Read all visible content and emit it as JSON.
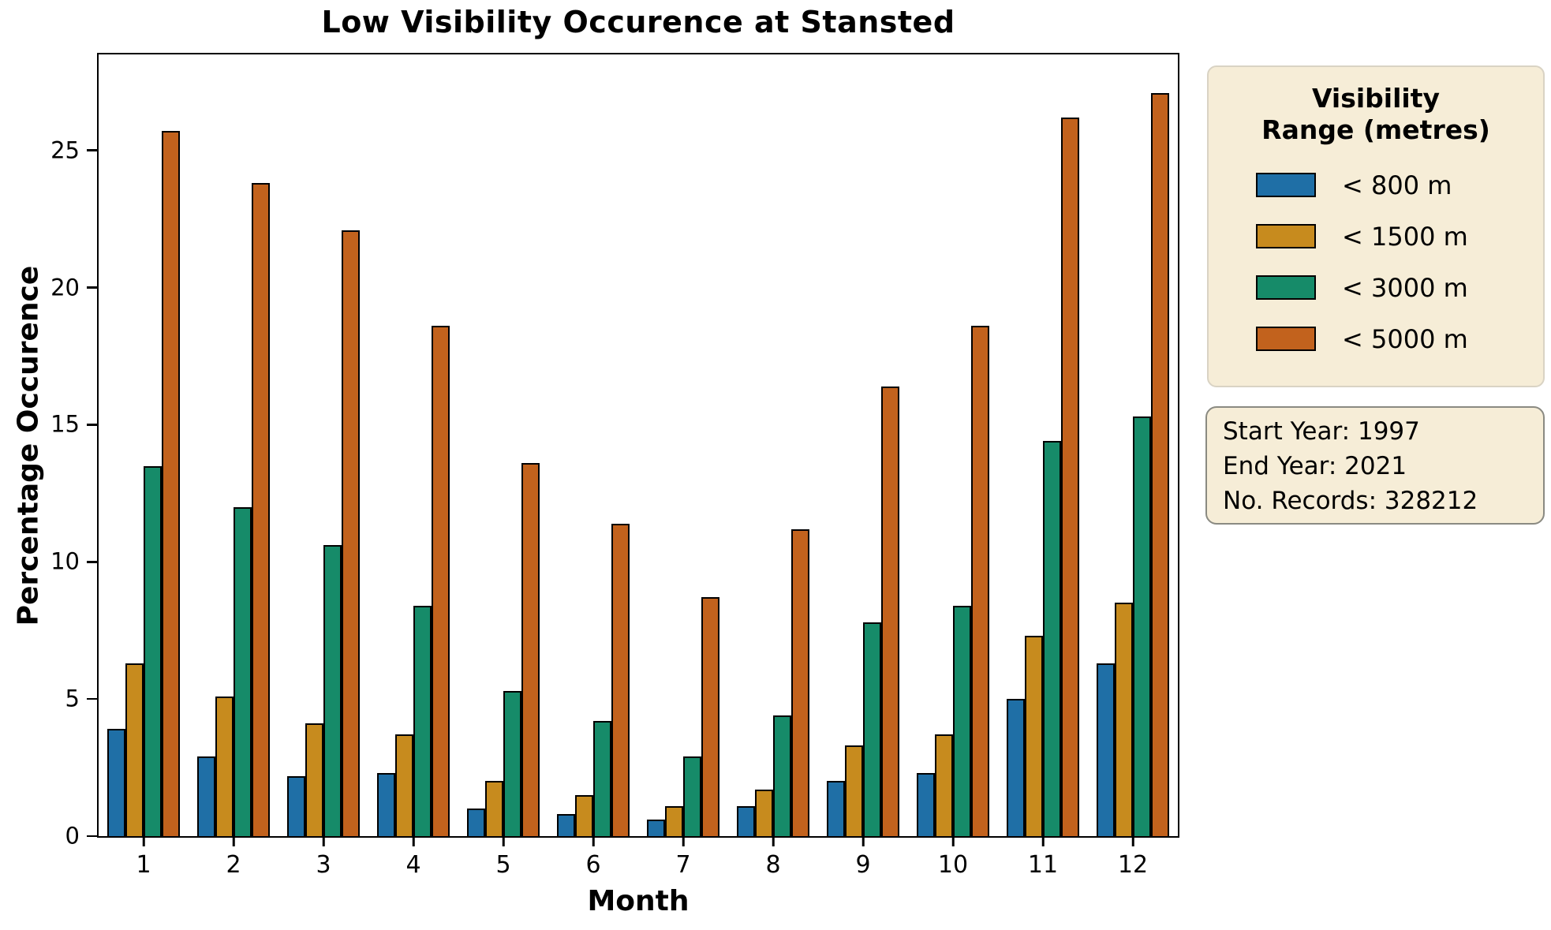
{
  "title": "Low Visibility Occurence at Stansted",
  "x_axis": {
    "label": "Month",
    "ticks": [
      "1",
      "2",
      "3",
      "4",
      "5",
      "6",
      "7",
      "8",
      "9",
      "10",
      "11",
      "12"
    ]
  },
  "y_axis": {
    "label": "Percentage Occurence",
    "ticks": [
      0,
      5,
      10,
      15,
      20,
      25
    ]
  },
  "legend": {
    "title_line1": "Visibility",
    "title_line2": "Range (metres)",
    "entries": [
      {
        "label": "< 800 m",
        "color": "#1F6FA6"
      },
      {
        "label": "< 1500 m",
        "color": "#C78B1E"
      },
      {
        "label": "< 3000 m",
        "color": "#168B69"
      },
      {
        "label": "< 5000 m",
        "color": "#C2621D"
      }
    ]
  },
  "info_box": {
    "lines": [
      "Start Year: 1997",
      "End Year: 2021",
      "No. Records: 328212"
    ]
  },
  "chart_data": {
    "type": "bar",
    "title": "Low Visibility Occurence at Stansted",
    "xlabel": "Month",
    "ylabel": "Percentage Occurence",
    "categories": [
      1,
      2,
      3,
      4,
      5,
      6,
      7,
      8,
      9,
      10,
      11,
      12
    ],
    "series": [
      {
        "name": "< 800 m",
        "color": "#1F6FA6",
        "values": [
          3.9,
          2.9,
          2.2,
          2.3,
          1.0,
          0.8,
          0.6,
          1.1,
          2.0,
          2.3,
          5.0,
          6.3
        ]
      },
      {
        "name": "< 1500 m",
        "color": "#C78B1E",
        "values": [
          6.3,
          5.1,
          4.1,
          3.7,
          2.0,
          1.5,
          1.1,
          1.7,
          3.3,
          3.7,
          7.3,
          8.5
        ]
      },
      {
        "name": "< 3000 m",
        "color": "#168B69",
        "values": [
          13.5,
          12.0,
          10.6,
          8.4,
          5.3,
          4.2,
          2.9,
          4.4,
          7.8,
          8.4,
          14.4,
          15.3
        ]
      },
      {
        "name": "< 5000 m",
        "color": "#C2621D",
        "values": [
          25.7,
          23.8,
          22.1,
          18.6,
          13.6,
          11.4,
          8.7,
          11.2,
          16.4,
          18.6,
          26.2,
          27.1
        ]
      }
    ],
    "ylim": [
      0,
      28.5
    ],
    "yticks": [
      0,
      5,
      10,
      15,
      20,
      25
    ],
    "grid": false,
    "legend_title": "Visibility Range (metres)",
    "legend_position": "outside-right",
    "annotations": [
      "Start Year: 1997",
      "End Year: 2021",
      "No. Records: 328212"
    ]
  }
}
